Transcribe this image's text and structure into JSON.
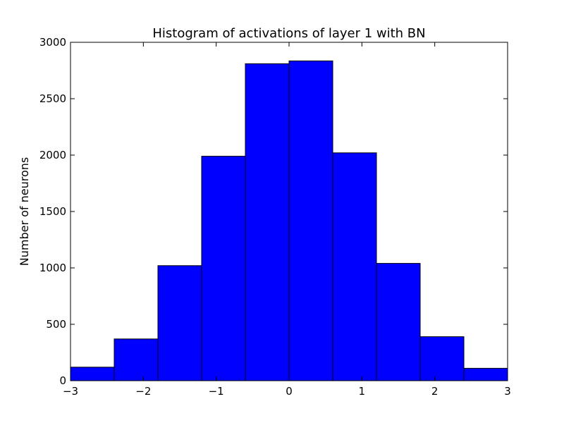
{
  "chart_data": {
    "type": "bar",
    "title": "Histogram of activations of layer 1  with BN",
    "xlabel": "",
    "ylabel": "Number of neurons",
    "bin_edges": [
      -3,
      -2.4,
      -1.8,
      -1.2,
      -0.6,
      0,
      0.6,
      1.2,
      1.8,
      2.4,
      3
    ],
    "values": [
      120,
      370,
      1020,
      1990,
      2810,
      2835,
      2020,
      1040,
      390,
      110
    ],
    "xlim": [
      -3,
      3
    ],
    "ylim": [
      0,
      3000
    ],
    "xticks": [
      -3,
      -2,
      -1,
      0,
      1,
      2,
      3
    ],
    "xtick_labels": [
      "−3",
      "−2",
      "−1",
      "0",
      "1",
      "2",
      "3"
    ],
    "yticks": [
      0,
      500,
      1000,
      1500,
      2000,
      2500,
      3000
    ],
    "ytick_labels": [
      "0",
      "500",
      "1000",
      "1500",
      "2000",
      "2500",
      "3000"
    ],
    "bar_color": "#0000ff",
    "edge_color": "#000000",
    "grid": false,
    "legend": "none"
  }
}
